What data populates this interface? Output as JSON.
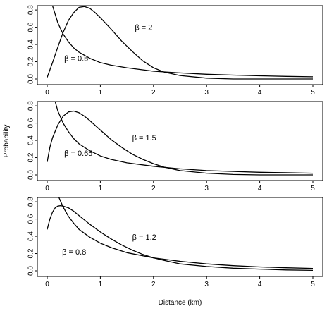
{
  "chart_data": [
    {
      "type": "line",
      "xlim": [
        0,
        5
      ],
      "ylim": [
        0,
        0.85
      ],
      "xticks": [
        "0",
        "1",
        "2",
        "3",
        "4",
        "5"
      ],
      "yticks": [
        "0.0",
        "0.2",
        "0.4",
        "0.6",
        "0.8"
      ],
      "series": [
        {
          "label": "β = 2",
          "x": [
            0,
            0.1,
            0.2,
            0.3,
            0.4,
            0.5,
            0.6,
            0.7,
            0.8,
            0.9,
            1.0,
            1.2,
            1.4,
            1.6,
            1.8,
            2.0,
            2.2,
            2.5,
            3.0,
            3.5,
            4.0,
            4.5,
            5.0
          ],
          "y": [
            0.02,
            0.19,
            0.37,
            0.54,
            0.68,
            0.77,
            0.83,
            0.84,
            0.82,
            0.77,
            0.71,
            0.58,
            0.44,
            0.32,
            0.21,
            0.13,
            0.08,
            0.04,
            0.01,
            0.0,
            0.0,
            0.0,
            0.0
          ]
        },
        {
          "label": "β = 0.5",
          "x": [
            0.1,
            0.15,
            0.2,
            0.3,
            0.4,
            0.5,
            0.6,
            0.8,
            1.0,
            1.2,
            1.5,
            2.0,
            2.5,
            3.0,
            3.5,
            4.0,
            4.5,
            5.0
          ],
          "y": [
            0.85,
            0.75,
            0.65,
            0.52,
            0.43,
            0.36,
            0.31,
            0.24,
            0.19,
            0.16,
            0.13,
            0.09,
            0.07,
            0.055,
            0.045,
            0.037,
            0.03,
            0.025
          ]
        }
      ],
      "annotations": [
        {
          "text": "β = 2",
          "x": 1.65,
          "y": 0.57
        },
        {
          "text": "β = 0.5",
          "x": 0.32,
          "y": 0.21
        }
      ]
    },
    {
      "type": "line",
      "xlim": [
        0,
        5
      ],
      "ylim": [
        0,
        0.85
      ],
      "xticks": [
        "0",
        "1",
        "2",
        "3",
        "4",
        "5"
      ],
      "yticks": [
        "0.0",
        "0.2",
        "0.4",
        "0.6",
        "0.8"
      ],
      "ylabel": "Probability",
      "series": [
        {
          "label": "β = 1.5",
          "x": [
            0,
            0.05,
            0.1,
            0.2,
            0.3,
            0.4,
            0.5,
            0.6,
            0.7,
            0.8,
            1.0,
            1.2,
            1.4,
            1.6,
            1.8,
            2.0,
            2.2,
            2.5,
            3.0,
            3.5,
            4.0,
            4.5,
            5.0
          ],
          "y": [
            0.15,
            0.32,
            0.43,
            0.58,
            0.68,
            0.73,
            0.74,
            0.72,
            0.68,
            0.63,
            0.52,
            0.41,
            0.32,
            0.24,
            0.18,
            0.13,
            0.09,
            0.05,
            0.02,
            0.005,
            0.0,
            0.0,
            0.0
          ]
        },
        {
          "label": "β = 0.65",
          "x": [
            0.15,
            0.2,
            0.3,
            0.4,
            0.5,
            0.6,
            0.8,
            1.0,
            1.2,
            1.5,
            2.0,
            2.5,
            3.0,
            3.5,
            4.0,
            4.5,
            5.0
          ],
          "y": [
            0.85,
            0.74,
            0.6,
            0.5,
            0.42,
            0.36,
            0.28,
            0.22,
            0.18,
            0.14,
            0.1,
            0.07,
            0.05,
            0.04,
            0.03,
            0.025,
            0.02
          ]
        }
      ],
      "annotations": [
        {
          "text": "β = 1.5",
          "x": 1.6,
          "y": 0.4
        },
        {
          "text": "β = 0.65",
          "x": 0.32,
          "y": 0.22
        }
      ]
    },
    {
      "type": "line",
      "xlim": [
        0,
        5
      ],
      "ylim": [
        0,
        0.85
      ],
      "xticks": [
        "0",
        "1",
        "2",
        "3",
        "4",
        "5"
      ],
      "yticks": [
        "0.0",
        "0.2",
        "0.4",
        "0.6",
        "0.8"
      ],
      "xlabel": "Distance (km)",
      "series": [
        {
          "label": "β = 1.2",
          "x": [
            0,
            0.05,
            0.1,
            0.15,
            0.2,
            0.25,
            0.3,
            0.4,
            0.5,
            0.6,
            0.8,
            1.0,
            1.2,
            1.4,
            1.6,
            1.8,
            2.0,
            2.2,
            2.5,
            3.0,
            3.5,
            4.0,
            4.5,
            5.0
          ],
          "y": [
            0.48,
            0.6,
            0.68,
            0.73,
            0.75,
            0.755,
            0.75,
            0.73,
            0.69,
            0.64,
            0.54,
            0.45,
            0.37,
            0.3,
            0.24,
            0.19,
            0.15,
            0.12,
            0.08,
            0.05,
            0.03,
            0.02,
            0.01,
            0.005
          ]
        },
        {
          "label": "β = 0.8",
          "x": [
            0.22,
            0.3,
            0.4,
            0.5,
            0.6,
            0.8,
            1.0,
            1.2,
            1.5,
            2.0,
            2.5,
            3.0,
            3.5,
            4.0,
            4.5,
            5.0
          ],
          "y": [
            0.85,
            0.74,
            0.63,
            0.55,
            0.48,
            0.39,
            0.32,
            0.27,
            0.21,
            0.15,
            0.11,
            0.08,
            0.06,
            0.045,
            0.035,
            0.028
          ]
        }
      ],
      "annotations": [
        {
          "text": "β = 1.2",
          "x": 1.6,
          "y": 0.36
        },
        {
          "text": "β = 0.8",
          "x": 0.28,
          "y": 0.19
        }
      ]
    }
  ]
}
